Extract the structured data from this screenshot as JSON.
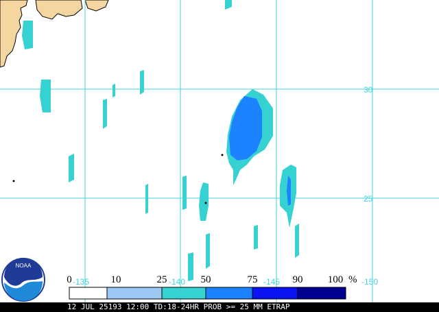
{
  "map": {
    "status_line": "12 JUL 25193 12:00 TD:18-24HR PROB >= 25 MM ETRAP",
    "latitude_labels": [
      "30",
      "25"
    ],
    "longitude_labels": [
      "-135",
      "-140",
      "-145",
      "-150"
    ],
    "logo_text": "NOAA"
  },
  "legend": {
    "labels": [
      "0",
      "10",
      "25",
      "50",
      "75",
      "90",
      "100"
    ],
    "unit": "%",
    "colors": [
      "#ffffff",
      "#9cc8f4",
      "#36d2d2",
      "#1c82ff",
      "#0a14f0",
      "#000090"
    ]
  },
  "colors": {
    "land": "#f5d6a0",
    "gridline": "#3fd6e0",
    "prob_25_50": "#36d2d2",
    "prob_50_75": "#1c82ff",
    "prob_75_90": "#0a14f0"
  }
}
